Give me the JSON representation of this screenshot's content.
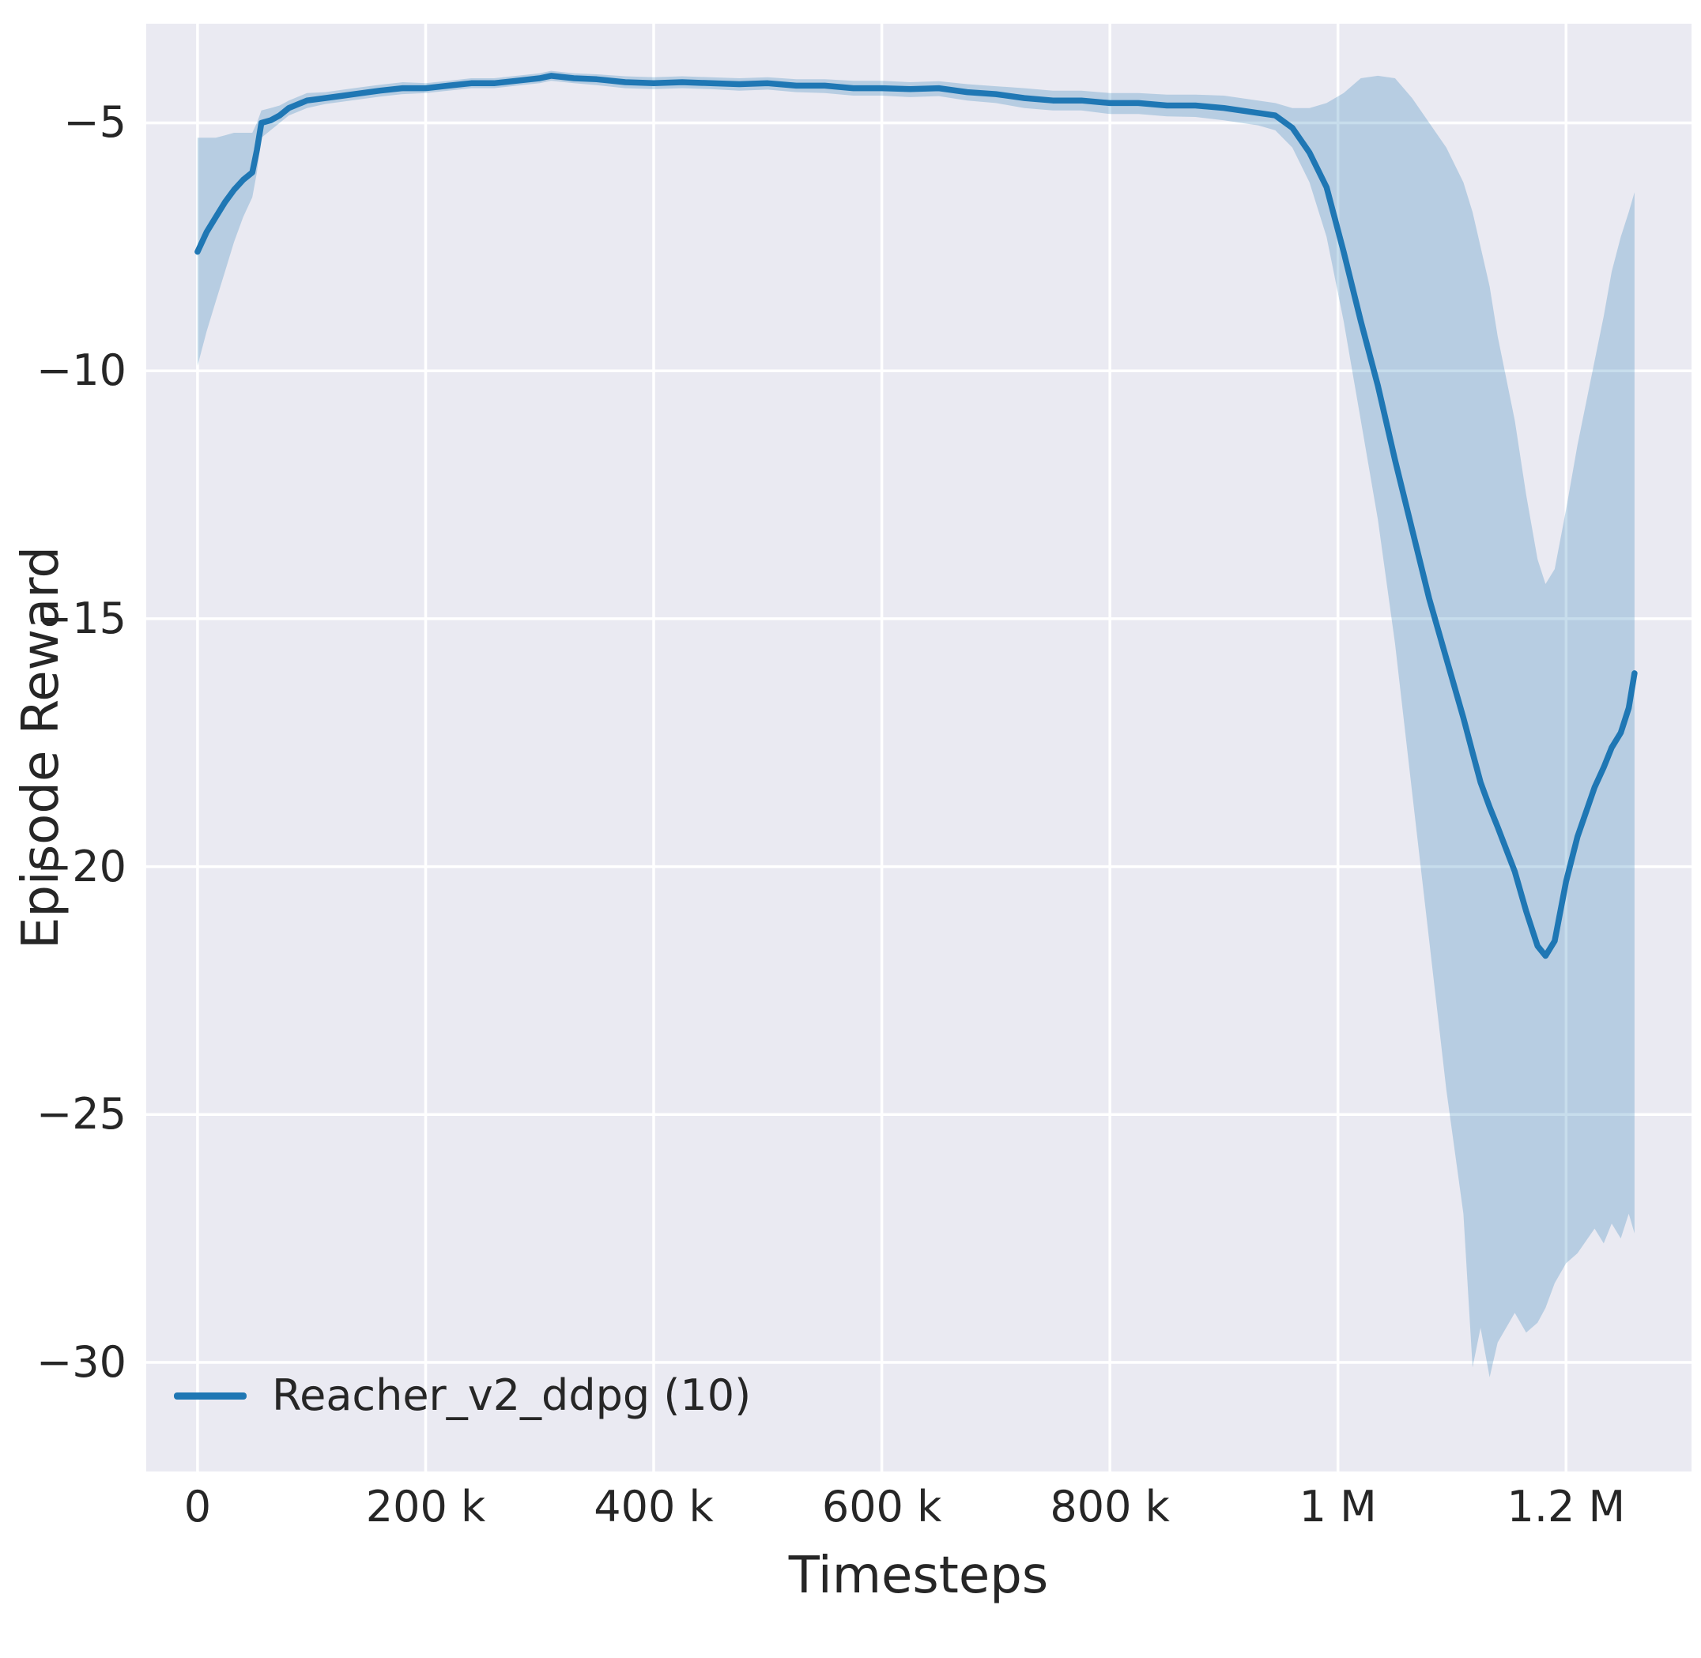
{
  "figure": {
    "background": "#ffffff",
    "plot_background": "#eaeaf2",
    "grid_color": "#ffffff",
    "text_color": "#262626"
  },
  "chart_data": {
    "type": "line",
    "title": "",
    "xlabel": "Timesteps",
    "ylabel": "Episode Reward",
    "xlim": [
      -45000,
      1310000
    ],
    "ylim": [
      -32.2,
      -3.0
    ],
    "grid": true,
    "legend_position": "lower-left",
    "x_ticks": [
      {
        "value": 0,
        "label": "0"
      },
      {
        "value": 200000,
        "label": "200 k"
      },
      {
        "value": 400000,
        "label": "400 k"
      },
      {
        "value": 600000,
        "label": "600 k"
      },
      {
        "value": 800000,
        "label": "800 k"
      },
      {
        "value": 1000000,
        "label": "1 M"
      },
      {
        "value": 1200000,
        "label": "1.2 M"
      }
    ],
    "y_ticks": [
      {
        "value": -5,
        "label": "−5"
      },
      {
        "value": -10,
        "label": "−10"
      },
      {
        "value": -15,
        "label": "−15"
      },
      {
        "value": -20,
        "label": "−20"
      },
      {
        "value": -25,
        "label": "−25"
      },
      {
        "value": -30,
        "label": "−30"
      }
    ],
    "legend": {
      "entries": [
        {
          "label": "Reacher_v2_ddpg (10)",
          "color": "#1f77b4"
        }
      ]
    },
    "series": [
      {
        "name": "Reacher_v2_ddpg (10)",
        "color": "#1f77b4",
        "band_color": "#1f77b4",
        "band_opacity": 0.25,
        "x": [
          0,
          8000,
          16000,
          24000,
          32000,
          40000,
          48000,
          52000,
          56000,
          64000,
          72000,
          80000,
          96000,
          112000,
          128000,
          144000,
          160000,
          180000,
          200000,
          220000,
          240000,
          260000,
          280000,
          300000,
          310000,
          330000,
          350000,
          375000,
          400000,
          425000,
          450000,
          475000,
          500000,
          525000,
          550000,
          575000,
          600000,
          625000,
          650000,
          675000,
          700000,
          725000,
          750000,
          775000,
          800000,
          825000,
          850000,
          875000,
          900000,
          915000,
          930000,
          945000,
          960000,
          975000,
          990000,
          1005000,
          1020000,
          1035000,
          1050000,
          1065000,
          1080000,
          1095000,
          1110000,
          1118000,
          1125000,
          1133000,
          1140000,
          1155000,
          1165000,
          1175000,
          1182000,
          1190000,
          1200000,
          1210000,
          1225000,
          1233000,
          1240000,
          1248000,
          1255000,
          1260000
        ],
        "mean": [
          -7.6,
          -7.2,
          -6.9,
          -6.6,
          -6.35,
          -6.15,
          -6.0,
          -5.55,
          -5.0,
          -4.95,
          -4.85,
          -4.7,
          -4.55,
          -4.5,
          -4.45,
          -4.4,
          -4.35,
          -4.3,
          -4.3,
          -4.25,
          -4.2,
          -4.2,
          -4.15,
          -4.1,
          -4.05,
          -4.1,
          -4.12,
          -4.18,
          -4.2,
          -4.18,
          -4.2,
          -4.22,
          -4.2,
          -4.25,
          -4.25,
          -4.3,
          -4.3,
          -4.32,
          -4.3,
          -4.38,
          -4.42,
          -4.5,
          -4.55,
          -4.55,
          -4.6,
          -4.6,
          -4.65,
          -4.65,
          -4.7,
          -4.75,
          -4.8,
          -4.85,
          -5.1,
          -5.6,
          -6.3,
          -7.6,
          -9.0,
          -10.3,
          -11.8,
          -13.2,
          -14.6,
          -15.8,
          -17.0,
          -17.7,
          -18.3,
          -18.8,
          -19.2,
          -20.1,
          -20.9,
          -21.6,
          -21.8,
          -21.5,
          -20.3,
          -19.4,
          -18.4,
          -18.0,
          -17.6,
          -17.3,
          -16.8,
          -16.1
        ],
        "lower": [
          -9.9,
          -9.2,
          -8.6,
          -8.0,
          -7.4,
          -6.9,
          -6.5,
          -6.0,
          -5.3,
          -5.15,
          -5.0,
          -4.85,
          -4.7,
          -4.62,
          -4.57,
          -4.52,
          -4.47,
          -4.42,
          -4.4,
          -4.35,
          -4.3,
          -4.3,
          -4.25,
          -4.2,
          -4.15,
          -4.2,
          -4.24,
          -4.3,
          -4.32,
          -4.3,
          -4.32,
          -4.35,
          -4.33,
          -4.38,
          -4.4,
          -4.45,
          -4.45,
          -4.48,
          -4.46,
          -4.55,
          -4.6,
          -4.7,
          -4.75,
          -4.75,
          -4.82,
          -4.82,
          -4.87,
          -4.88,
          -4.95,
          -5.0,
          -5.05,
          -5.15,
          -5.5,
          -6.2,
          -7.3,
          -9.0,
          -11.0,
          -13.0,
          -15.5,
          -18.5,
          -21.5,
          -24.5,
          -27.0,
          -30.1,
          -29.3,
          -30.3,
          -29.6,
          -29.0,
          -29.4,
          -29.2,
          -28.9,
          -28.4,
          -28.0,
          -27.8,
          -27.3,
          -27.6,
          -27.2,
          -27.5,
          -27.0,
          -27.4
        ],
        "upper": [
          -5.3,
          -5.3,
          -5.3,
          -5.25,
          -5.2,
          -5.2,
          -5.2,
          -5.0,
          -4.75,
          -4.7,
          -4.65,
          -4.55,
          -4.4,
          -4.38,
          -4.33,
          -4.28,
          -4.23,
          -4.18,
          -4.2,
          -4.15,
          -4.1,
          -4.1,
          -4.05,
          -4.0,
          -3.95,
          -4.0,
          -4.02,
          -4.06,
          -4.08,
          -4.06,
          -4.08,
          -4.1,
          -4.08,
          -4.12,
          -4.12,
          -4.15,
          -4.15,
          -4.18,
          -4.16,
          -4.22,
          -4.26,
          -4.3,
          -4.35,
          -4.35,
          -4.4,
          -4.4,
          -4.43,
          -4.43,
          -4.45,
          -4.5,
          -4.55,
          -4.6,
          -4.7,
          -4.7,
          -4.6,
          -4.4,
          -4.1,
          -4.05,
          -4.1,
          -4.5,
          -5.0,
          -5.5,
          -6.2,
          -6.8,
          -7.5,
          -8.3,
          -9.3,
          -11.0,
          -12.5,
          -13.8,
          -14.3,
          -14.0,
          -12.8,
          -11.5,
          -9.8,
          -8.9,
          -8.0,
          -7.3,
          -6.8,
          -6.4
        ]
      }
    ]
  }
}
